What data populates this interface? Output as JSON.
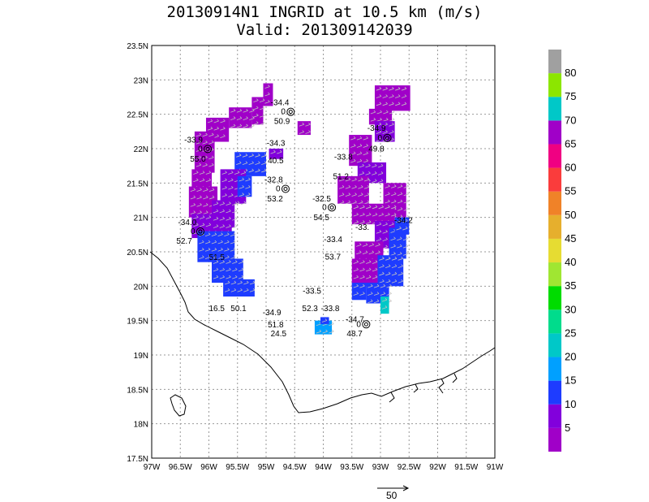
{
  "title": {
    "line1": "20130914N1 INGRID at 10.5 km (m/s)",
    "line2": "Valid: 201309142039"
  },
  "map": {
    "lon_range": [
      -97,
      -91
    ],
    "lat_range": [
      17.5,
      23.5
    ],
    "x_ticks": [
      "97W",
      "96.5W",
      "96W",
      "95.5W",
      "95W",
      "94.5W",
      "94W",
      "93.5W",
      "93W",
      "92.5W",
      "92W",
      "91.5W",
      "91W"
    ],
    "y_ticks": [
      "23.5N",
      "23N",
      "22.5N",
      "22N",
      "21.5N",
      "21N",
      "20.5N",
      "20N",
      "19.5N",
      "19N",
      "18.5N",
      "18N",
      "17.5N"
    ],
    "grid": "dotted",
    "coastline": "gulf-of-mexico-mexico-coast"
  },
  "colorbar": {
    "labels": [
      "5",
      "10",
      "15",
      "20",
      "25",
      "30",
      "35",
      "40",
      "45",
      "50",
      "55",
      "60",
      "65",
      "70",
      "75",
      "80"
    ],
    "colors": [
      "#a000c8",
      "#8200dc",
      "#1e3cff",
      "#00a0ff",
      "#00c8c8",
      "#00dc8c",
      "#00dc00",
      "#a0e632",
      "#e6dc32",
      "#e6af2d",
      "#f08228",
      "#fa3c3c",
      "#f00082",
      "#a000c8",
      "#00c8c8",
      "#8ce600",
      "#a0a0a0"
    ]
  },
  "scale": {
    "label": "50"
  },
  "station_labels": [
    {
      "text": "-34.4",
      "lon": -94.92,
      "lat": 22.63
    },
    {
      "text": "0",
      "lon": -94.74,
      "lat": 22.5
    },
    {
      "text": "50.9",
      "lon": -94.86,
      "lat": 22.36
    },
    {
      "text": "-33.9",
      "lon": -96.43,
      "lat": 22.09
    },
    {
      "text": "0",
      "lon": -96.19,
      "lat": 21.96
    },
    {
      "text": "55.0",
      "lon": -96.33,
      "lat": 21.81
    },
    {
      "text": "-34.3",
      "lon": -94.99,
      "lat": 22.04
    },
    {
      "text": "40.5",
      "lon": -94.97,
      "lat": 21.79
    },
    {
      "text": "-34.9",
      "lon": -93.23,
      "lat": 22.26
    },
    {
      "text": "0",
      "lon": -93.05,
      "lat": 22.12
    },
    {
      "text": "49.8",
      "lon": -93.21,
      "lat": 21.96
    },
    {
      "text": "-33.8",
      "lon": -93.81,
      "lat": 21.84
    },
    {
      "text": "51.2",
      "lon": -93.83,
      "lat": 21.56
    },
    {
      "text": "-32.8",
      "lon": -95.03,
      "lat": 21.51
    },
    {
      "text": "0",
      "lon": -94.83,
      "lat": 21.38
    },
    {
      "text": "53.2",
      "lon": -94.98,
      "lat": 21.23
    },
    {
      "text": "-32.5",
      "lon": -94.19,
      "lat": 21.23
    },
    {
      "text": "0",
      "lon": -94.02,
      "lat": 21.11
    },
    {
      "text": "54.5",
      "lon": -94.17,
      "lat": 20.96
    },
    {
      "text": "-34.0",
      "lon": -96.54,
      "lat": 20.89
    },
    {
      "text": "0",
      "lon": -96.32,
      "lat": 20.76
    },
    {
      "text": "52.7",
      "lon": -96.57,
      "lat": 20.62
    },
    {
      "text": "-34.2",
      "lon": -92.76,
      "lat": 20.92
    },
    {
      "text": "-33.",
      "lon": -93.44,
      "lat": 20.82
    },
    {
      "text": "-33.4",
      "lon": -93.99,
      "lat": 20.64
    },
    {
      "text": "53.7",
      "lon": -93.97,
      "lat": 20.39
    },
    {
      "text": "51.5",
      "lon": -96.0,
      "lat": 20.38
    },
    {
      "text": "-33.5",
      "lon": -94.36,
      "lat": 19.89
    },
    {
      "text": "52.3",
      "lon": -94.37,
      "lat": 19.64
    },
    {
      "text": "-33.8",
      "lon": -94.04,
      "lat": 19.64
    },
    {
      "text": "16.5",
      "lon": -96.0,
      "lat": 19.64
    },
    {
      "text": "50.1",
      "lon": -95.62,
      "lat": 19.64
    },
    {
      "text": "-34.9",
      "lon": -95.06,
      "lat": 19.58
    },
    {
      "text": "-34.7",
      "lon": -93.61,
      "lat": 19.48
    },
    {
      "text": "0",
      "lon": -93.42,
      "lat": 19.41
    },
    {
      "text": "51.8",
      "lon": -94.97,
      "lat": 19.4
    },
    {
      "text": "24.5",
      "lon": -94.92,
      "lat": 19.27
    },
    {
      "text": "48.7",
      "lon": -93.59,
      "lat": 19.27
    }
  ]
}
